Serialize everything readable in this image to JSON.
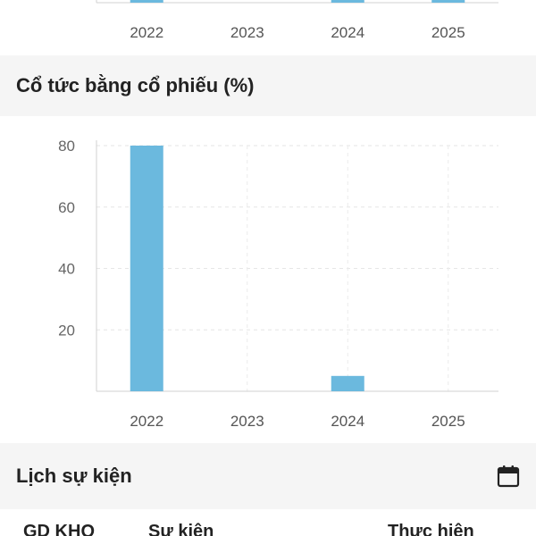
{
  "top_chart": {
    "categories": [
      "2022",
      "2023",
      "2024",
      "2025"
    ],
    "bar_color": "#6bb9de"
  },
  "dividend_section": {
    "title": "Cổ tức bằng cổ phiếu (%)"
  },
  "chart_data": {
    "type": "bar",
    "categories": [
      "2022",
      "2023",
      "2024",
      "2025"
    ],
    "values": [
      80,
      0,
      5,
      0
    ],
    "yticks": [
      20,
      40,
      60,
      80
    ],
    "ylim": [
      0,
      80
    ],
    "grid": true,
    "bar_color": "#6bb9de"
  },
  "events_section": {
    "title": "Lịch sự kiện",
    "calendar_icon": "calendar-icon"
  },
  "events_table": {
    "columns": [
      "GD KHQ",
      "Sự kiện",
      "Thực hiện"
    ]
  }
}
